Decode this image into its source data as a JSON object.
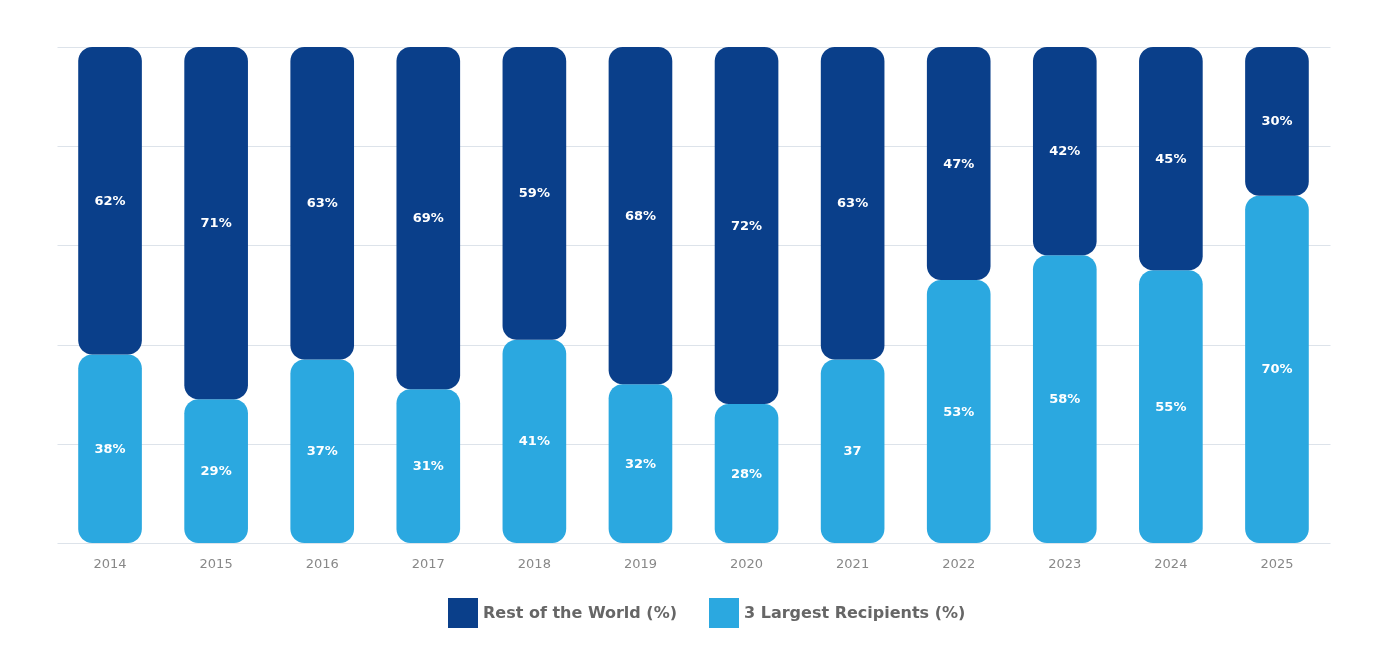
{
  "chart_data": {
    "type": "bar",
    "stacked": true,
    "categories": [
      "2014",
      "2015",
      "2016",
      "2017",
      "2018",
      "2019",
      "2020",
      "2021",
      "2022",
      "2023",
      "2024",
      "2025"
    ],
    "series": [
      {
        "name": "3 Largest Recipients (%)",
        "color": "#2ba8e0",
        "values": [
          38,
          29,
          37,
          31,
          41,
          32,
          28,
          37,
          53,
          58,
          55,
          70
        ],
        "value_labels": [
          "38%",
          "29%",
          "37%",
          "31%",
          "41%",
          "32%",
          "28%",
          "37",
          "53%",
          "58%",
          "55%",
          "70%"
        ]
      },
      {
        "name": "Rest of the World (%)",
        "color": "#0a3f8a",
        "values": [
          62,
          71,
          63,
          69,
          59,
          68,
          72,
          63,
          47,
          42,
          45,
          30
        ],
        "value_labels": [
          "62%",
          "71%",
          "63%",
          "69%",
          "59%",
          "68%",
          "72%",
          "63%",
          "47%",
          "42%",
          "45%",
          "30%"
        ]
      }
    ],
    "ylim": [
      0,
      100
    ],
    "yticks": [
      {
        "value": 0,
        "label": null
      },
      {
        "value": 20,
        "label": null
      },
      {
        "value": 40,
        "label": null
      },
      {
        "value": 60,
        "label": null
      },
      {
        "value": 80,
        "label": null
      },
      {
        "value": 100,
        "label": null
      }
    ],
    "grid": "y",
    "tick_labels": "x",
    "legend": "bottom"
  }
}
